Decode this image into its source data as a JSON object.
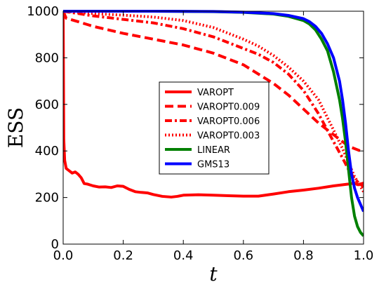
{
  "chart_data": {
    "type": "line",
    "title": "",
    "xlabel": "t",
    "ylabel": "ESS",
    "xlim": [
      0.0,
      1.0
    ],
    "ylim": [
      0,
      1000
    ],
    "xticks": [
      "0.0",
      "0.2",
      "0.4",
      "0.6",
      "0.8",
      "1.0"
    ],
    "yticks": [
      "0",
      "200",
      "400",
      "600",
      "800",
      "1000"
    ],
    "grid": false,
    "legend_position": "center",
    "series": [
      {
        "name": "VAROPT",
        "color": "#ff0000",
        "dash": "solid",
        "x": [
          0.0,
          0.002,
          0.005,
          0.01,
          0.02,
          0.03,
          0.04,
          0.05,
          0.06,
          0.07,
          0.08,
          0.1,
          0.12,
          0.14,
          0.16,
          0.18,
          0.2,
          0.22,
          0.24,
          0.26,
          0.28,
          0.3,
          0.33,
          0.36,
          0.38,
          0.4,
          0.45,
          0.5,
          0.55,
          0.6,
          0.65,
          0.7,
          0.75,
          0.8,
          0.85,
          0.9,
          0.95,
          0.97,
          0.98,
          1.0
        ],
        "y": [
          1000,
          450,
          360,
          325,
          315,
          305,
          310,
          300,
          285,
          260,
          258,
          250,
          245,
          246,
          243,
          250,
          248,
          235,
          225,
          222,
          220,
          213,
          205,
          202,
          205,
          210,
          212,
          210,
          208,
          206,
          206,
          215,
          225,
          232,
          240,
          250,
          258,
          262,
          255,
          262
        ]
      },
      {
        "name": "VAROPT0.009",
        "color": "#ff0000",
        "dash": "dashed",
        "x": [
          0.0,
          0.01,
          0.05,
          0.1,
          0.2,
          0.3,
          0.4,
          0.5,
          0.6,
          0.7,
          0.75,
          0.8,
          0.85,
          0.9,
          0.93,
          0.95,
          0.97,
          1.0
        ],
        "y": [
          1000,
          970,
          955,
          935,
          905,
          880,
          855,
          820,
          770,
          690,
          640,
          580,
          520,
          470,
          440,
          420,
          410,
          395
        ]
      },
      {
        "name": "VAROPT0.006",
        "color": "#ff0000",
        "dash": "dashdot",
        "x": [
          0.0,
          0.05,
          0.1,
          0.2,
          0.3,
          0.4,
          0.5,
          0.6,
          0.65,
          0.7,
          0.75,
          0.8,
          0.85,
          0.9,
          0.93,
          0.95,
          0.97,
          1.0
        ],
        "y": [
          1000,
          990,
          980,
          965,
          950,
          925,
          890,
          840,
          815,
          780,
          730,
          660,
          560,
          440,
          370,
          320,
          280,
          245
        ]
      },
      {
        "name": "VAROPT0.003",
        "color": "#ff0000",
        "dash": "dotted",
        "x": [
          0.0,
          0.05,
          0.1,
          0.2,
          0.3,
          0.4,
          0.5,
          0.6,
          0.65,
          0.7,
          0.75,
          0.8,
          0.85,
          0.9,
          0.93,
          0.95,
          0.97,
          1.0
        ],
        "y": [
          1000,
          995,
          990,
          983,
          975,
          960,
          930,
          880,
          850,
          810,
          760,
          700,
          620,
          490,
          410,
          350,
          290,
          225
        ]
      },
      {
        "name": "LINEAR",
        "color": "#008000",
        "dash": "solid",
        "x": [
          0.0,
          0.1,
          0.3,
          0.5,
          0.6,
          0.7,
          0.75,
          0.8,
          0.82,
          0.84,
          0.86,
          0.88,
          0.9,
          0.92,
          0.93,
          0.94,
          0.95,
          0.96,
          0.97,
          0.98,
          0.99,
          1.0
        ],
        "y": [
          1000,
          1000,
          1000,
          998,
          995,
          988,
          978,
          960,
          945,
          920,
          880,
          830,
          740,
          620,
          540,
          440,
          320,
          200,
          120,
          75,
          50,
          35
        ]
      },
      {
        "name": "GMS13",
        "color": "#0000ff",
        "dash": "solid",
        "x": [
          0.0,
          0.1,
          0.3,
          0.5,
          0.6,
          0.7,
          0.75,
          0.8,
          0.82,
          0.84,
          0.86,
          0.88,
          0.9,
          0.92,
          0.93,
          0.94,
          0.95,
          0.96,
          0.97,
          0.98,
          0.99,
          1.0
        ],
        "y": [
          1000,
          1000,
          1000,
          999,
          996,
          990,
          982,
          968,
          955,
          935,
          905,
          860,
          800,
          700,
          620,
          520,
          400,
          300,
          240,
          200,
          170,
          140
        ]
      }
    ]
  }
}
